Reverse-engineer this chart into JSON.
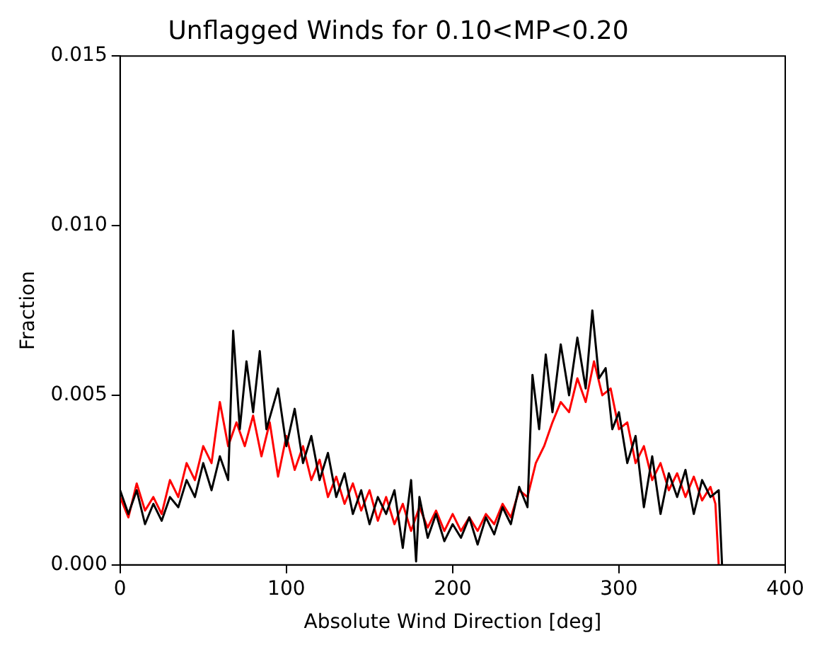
{
  "chart_data": {
    "type": "line",
    "title": "Unflagged Winds for 0.10<MP<0.20",
    "xlabel": "Absolute Wind Direction [deg]",
    "ylabel": "Fraction",
    "xlim": [
      0,
      400
    ],
    "xticks": [
      0,
      100,
      200,
      300,
      400
    ],
    "ylim": [
      0,
      0.015
    ],
    "yticks": [
      {
        "value": 0,
        "label": "0.000"
      },
      {
        "value": 0.005,
        "label": "0.005"
      },
      {
        "value": 0.01,
        "label": "0.010"
      },
      {
        "value": 0.015,
        "label": "0.015"
      }
    ],
    "grid": false,
    "legend": false,
    "marker": "none",
    "line_style": "solid",
    "series": [
      {
        "color": "#000000",
        "x": [
          0,
          5,
          10,
          15,
          20,
          25,
          30,
          35,
          40,
          45,
          50,
          55,
          60,
          65,
          68,
          72,
          76,
          80,
          84,
          88,
          95,
          100,
          105,
          110,
          115,
          120,
          125,
          130,
          135,
          140,
          145,
          150,
          155,
          160,
          165,
          170,
          175,
          178,
          180,
          185,
          190,
          195,
          200,
          205,
          210,
          215,
          220,
          225,
          230,
          235,
          240,
          245,
          248,
          252,
          256,
          260,
          265,
          270,
          275,
          280,
          284,
          288,
          292,
          296,
          300,
          305,
          310,
          315,
          320,
          325,
          330,
          335,
          340,
          345,
          350,
          355,
          360,
          362
        ],
        "values": [
          0.0022,
          0.0015,
          0.0022,
          0.0012,
          0.0018,
          0.0013,
          0.002,
          0.0017,
          0.0025,
          0.002,
          0.003,
          0.0022,
          0.0032,
          0.0025,
          0.0069,
          0.004,
          0.006,
          0.0045,
          0.0063,
          0.004,
          0.0052,
          0.0035,
          0.0046,
          0.003,
          0.0038,
          0.0025,
          0.0033,
          0.002,
          0.0027,
          0.0015,
          0.0022,
          0.0012,
          0.002,
          0.0015,
          0.0022,
          0.0005,
          0.0025,
          0.0001,
          0.002,
          0.0008,
          0.0015,
          0.0007,
          0.0012,
          0.0008,
          0.0014,
          0.0006,
          0.0014,
          0.0009,
          0.0017,
          0.0012,
          0.0023,
          0.0017,
          0.0056,
          0.004,
          0.0062,
          0.0045,
          0.0065,
          0.005,
          0.0067,
          0.0052,
          0.0075,
          0.0055,
          0.0058,
          0.004,
          0.0045,
          0.003,
          0.0038,
          0.0017,
          0.0032,
          0.0015,
          0.0027,
          0.002,
          0.0028,
          0.0015,
          0.0025,
          0.002,
          0.0022,
          0
        ]
      },
      {
        "color": "#ff0000",
        "x": [
          0,
          5,
          10,
          15,
          20,
          25,
          30,
          35,
          40,
          45,
          50,
          55,
          60,
          65,
          70,
          75,
          80,
          85,
          90,
          95,
          100,
          105,
          110,
          115,
          120,
          125,
          130,
          135,
          140,
          145,
          150,
          155,
          160,
          165,
          170,
          175,
          180,
          185,
          190,
          195,
          200,
          205,
          210,
          215,
          220,
          225,
          230,
          235,
          240,
          245,
          250,
          255,
          260,
          265,
          270,
          275,
          280,
          285,
          290,
          295,
          300,
          305,
          310,
          315,
          320,
          325,
          330,
          335,
          340,
          345,
          350,
          355,
          358,
          360
        ],
        "values": [
          0.002,
          0.0014,
          0.0024,
          0.0016,
          0.002,
          0.0015,
          0.0025,
          0.002,
          0.003,
          0.0025,
          0.0035,
          0.003,
          0.0048,
          0.0035,
          0.0042,
          0.0035,
          0.0044,
          0.0032,
          0.0042,
          0.0026,
          0.0038,
          0.0028,
          0.0035,
          0.0025,
          0.0031,
          0.002,
          0.0026,
          0.0018,
          0.0024,
          0.0016,
          0.0022,
          0.0013,
          0.002,
          0.0012,
          0.0018,
          0.001,
          0.0017,
          0.0011,
          0.0016,
          0.001,
          0.0015,
          0.001,
          0.0014,
          0.001,
          0.0015,
          0.0012,
          0.0018,
          0.0014,
          0.0022,
          0.002,
          0.003,
          0.0035,
          0.0042,
          0.0048,
          0.0045,
          0.0055,
          0.0048,
          0.006,
          0.005,
          0.0052,
          0.004,
          0.0042,
          0.003,
          0.0035,
          0.0025,
          0.003,
          0.0022,
          0.0027,
          0.002,
          0.0026,
          0.0019,
          0.0023,
          0.0018,
          0
        ]
      }
    ]
  }
}
